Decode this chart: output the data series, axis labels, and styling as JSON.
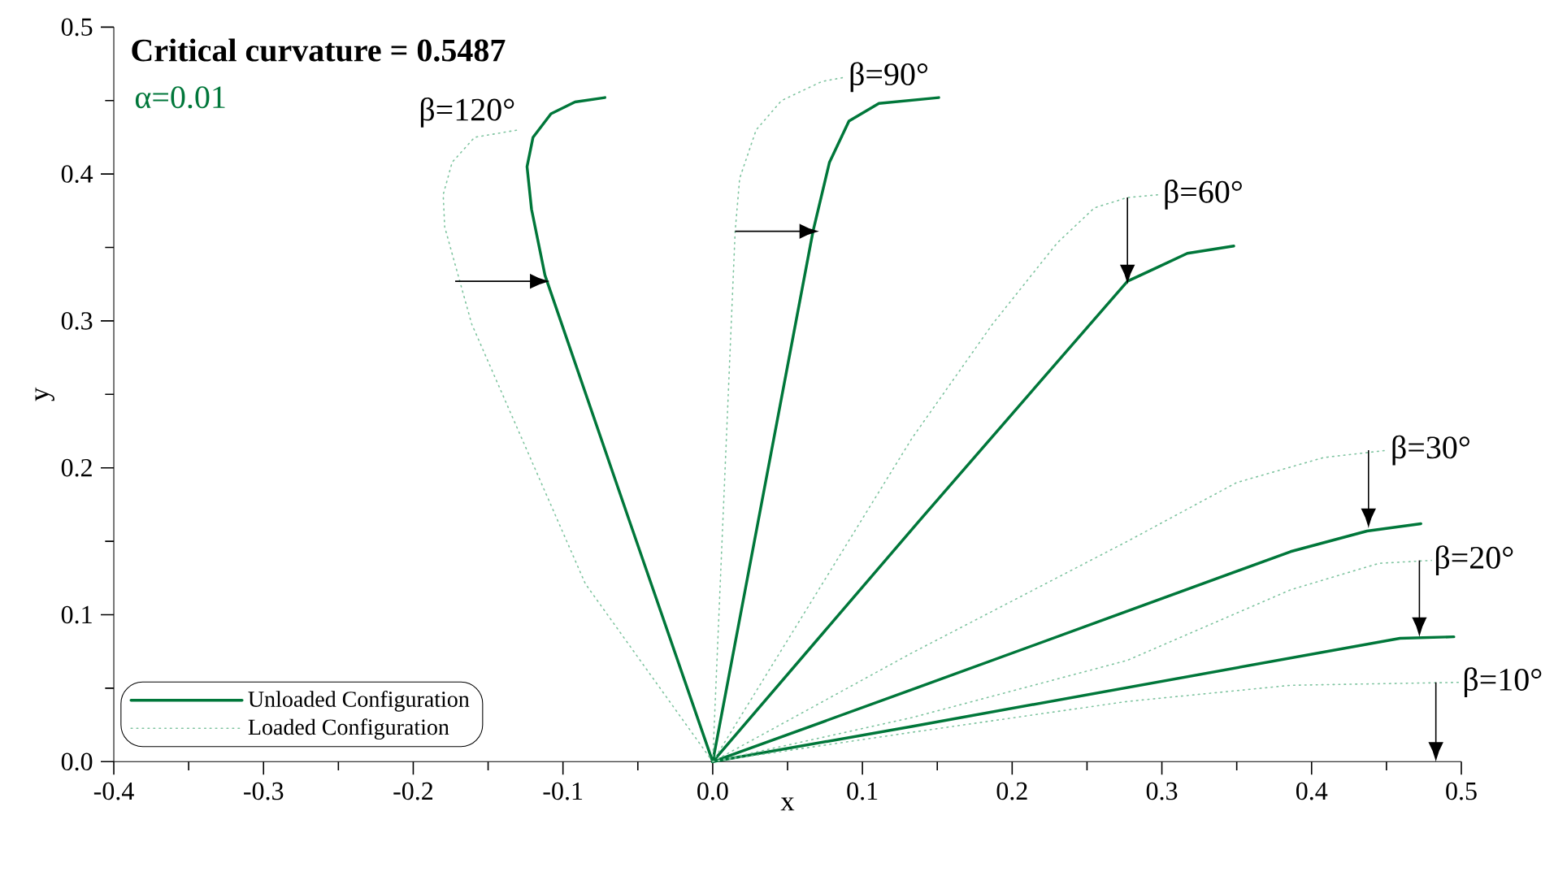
{
  "chart_data": {
    "type": "line",
    "title": "**Critical curvature = 0.5487**",
    "xlabel": "x",
    "ylabel": "y",
    "xlim": [
      -0.4,
      0.5
    ],
    "ylim": [
      0,
      0.5
    ],
    "xticks": [
      -0.4,
      -0.3,
      -0.2,
      -0.1,
      {
        "value": 0,
        "label": "0.0"
      },
      0.1,
      0.2,
      0.3,
      0.4,
      0.5
    ],
    "yticks": [
      {
        "value": 0,
        "label": "0.0"
      },
      0.1,
      0.2,
      0.3,
      0.4,
      0.5
    ],
    "grid": false,
    "legend": "bottom left",
    "marker": "none",
    "series": [
      {
        "name": "Unloaded Configuration",
        "color": "#00773a",
        "line_style": "solid",
        "x": [
          0,
          -0.056,
          -0.112,
          -0.121,
          -0.124,
          -0.12,
          -0.108,
          -0.092,
          -0.072
        ],
        "values": [
          0,
          0.165,
          0.331,
          0.376,
          0.405,
          0.425,
          0.441,
          0.449,
          0.452
        ]
      },
      {
        "name": "Loaded Configuration",
        "color": "#7fc4a0",
        "line_style": "dotted",
        "x": [
          0,
          -0.085,
          -0.161,
          -0.179,
          -0.18,
          -0.174,
          -0.159,
          -0.13
        ],
        "values": [
          0,
          0.121,
          0.298,
          0.364,
          0.386,
          0.408,
          0.425,
          0.43
        ]
      },
      {
        "color": "#00773a",
        "line_style": "solid",
        "x": [
          0,
          0.067,
          0.078,
          0.091,
          0.111,
          0.151
        ],
        "values": [
          0,
          0.361,
          0.408,
          0.436,
          0.448,
          0.452
        ]
      },
      {
        "color": "#7fc4a0",
        "line_style": "dotted",
        "x": [
          0,
          0.015,
          0.018,
          0.029,
          0.046,
          0.073,
          0.089
        ],
        "values": [
          0,
          0.361,
          0.397,
          0.43,
          0.45,
          0.463,
          0.466
        ]
      },
      {
        "color": "#00773a",
        "line_style": "solid",
        "x": [
          0,
          0.138,
          0.277,
          0.296,
          0.317,
          0.348
        ],
        "values": [
          0,
          0.164,
          0.327,
          0.336,
          0.346,
          0.351
        ]
      },
      {
        "color": "#7fc4a0",
        "line_style": "dotted",
        "x": [
          0,
          0.133,
          0.187,
          0.23,
          0.255,
          0.277,
          0.299
        ],
        "values": [
          0,
          0.22,
          0.298,
          0.353,
          0.377,
          0.384,
          0.386
        ]
      },
      {
        "color": "#00773a",
        "line_style": "solid",
        "x": [
          0,
          0.133,
          0.386,
          0.437,
          0.473
        ],
        "values": [
          0,
          0.049,
          0.143,
          0.157,
          0.162
        ]
      },
      {
        "color": "#7fc4a0",
        "line_style": "dotted",
        "x": [
          0,
          0.133,
          0.277,
          0.35,
          0.408,
          0.451
        ],
        "values": [
          0,
          0.074,
          0.15,
          0.19,
          0.207,
          0.212
        ]
      },
      {
        "color": "#00773a",
        "line_style": "solid",
        "x": [
          0,
          0.133,
          0.459,
          0.495
        ],
        "values": [
          0,
          0.024,
          0.084,
          0.085
        ]
      },
      {
        "color": "#7fc4a0",
        "line_style": "dotted",
        "x": [
          0,
          0.133,
          0.277,
          0.386,
          0.445,
          0.48
        ],
        "values": [
          0,
          0.03,
          0.069,
          0.117,
          0.135,
          0.137
        ]
      },
      {
        "color": "#7fc4a0",
        "line_style": "dotted",
        "x": [
          0,
          0.133,
          0.277,
          0.386,
          0.499
        ],
        "values": [
          0,
          0.02,
          0.041,
          0.052,
          0.054
        ]
      }
    ],
    "annotations": [
      "α=0.01",
      {
        "text": "β=120°",
        "x": -0.13,
        "y": 0.43
      },
      {
        "text": "β=90°",
        "x": 0.089,
        "y": 0.466
      },
      {
        "text": "β=60°",
        "x": 0.299,
        "y": 0.386
      },
      {
        "text": "β=30°",
        "x": 0.451,
        "y": 0.212
      },
      {
        "text": "β=20°",
        "x": 0.48,
        "y": 0.137
      },
      {
        "text": "β=10°",
        "x": 0.499,
        "y": 0.054
      }
    ]
  }
}
